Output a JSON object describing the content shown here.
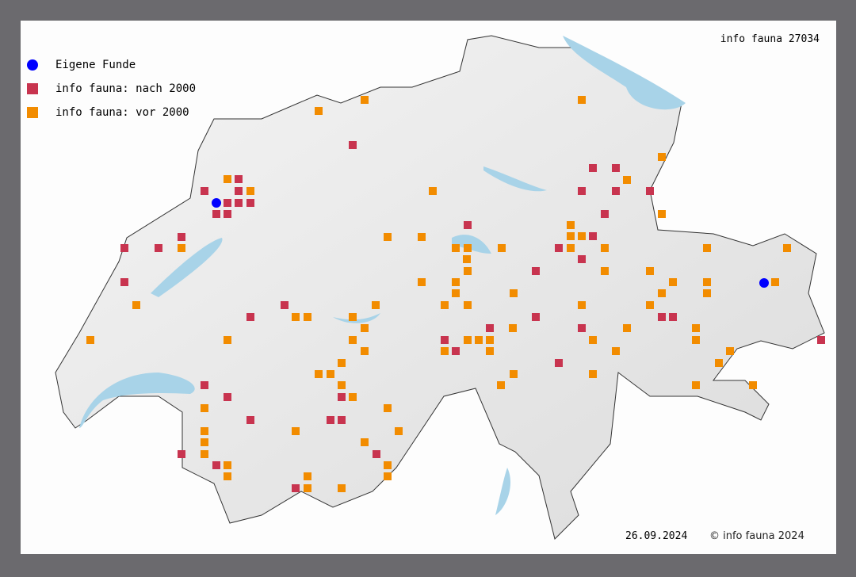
{
  "title": "info fauna 27034",
  "legend": [
    {
      "label": "Eigene Funde",
      "shape": "circle",
      "color": "#0000ff"
    },
    {
      "label": "info fauna: nach 2000",
      "shape": "square",
      "color": "#c8344f"
    },
    {
      "label": "info fauna: vor 2000",
      "shape": "square",
      "color": "#f28c00"
    }
  ],
  "footer": {
    "date": "26.09.2024",
    "copyright": "© info fauna 2024"
  },
  "colors": {
    "lake": "#a8d3e8",
    "land": "#ececec",
    "border": "#333333",
    "frame": "#6b6a6e"
  }
}
